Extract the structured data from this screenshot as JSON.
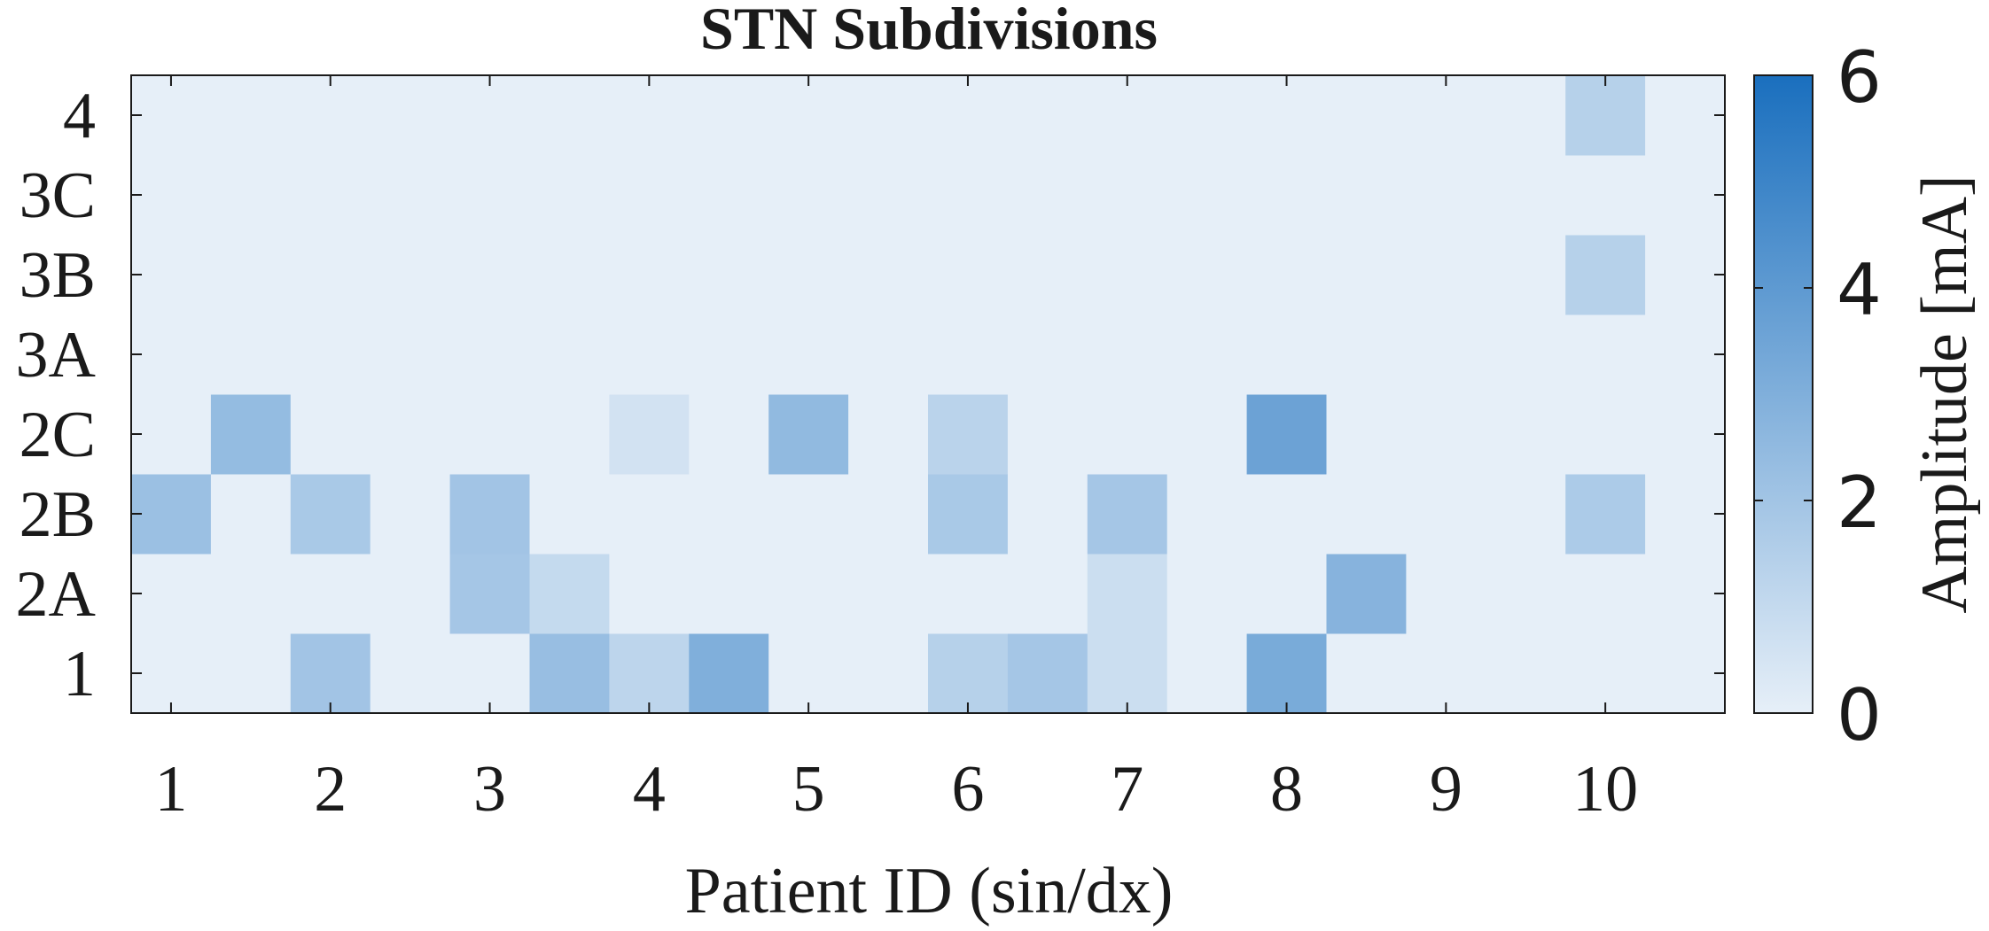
{
  "chart_data": {
    "type": "heatmap",
    "title": "STN Subdivisions",
    "xlabel": "Patient ID (sin/dx)",
    "colorbar_label": "Amplitude [mA]",
    "x_categories": [
      "1",
      "",
      "2",
      "",
      "3",
      "",
      "4",
      "",
      "5",
      "",
      "6",
      "",
      "7",
      "",
      "8",
      "",
      "9",
      "",
      "10",
      ""
    ],
    "x_tick_labels": [
      "1",
      "2",
      "3",
      "4",
      "5",
      "6",
      "7",
      "8",
      "9",
      "10"
    ],
    "y_categories": [
      "1",
      "2A",
      "2B",
      "2C",
      "3A",
      "3B",
      "3C",
      "4"
    ],
    "clim": [
      0,
      6
    ],
    "colorbar_ticks": [
      "0",
      "2",
      "4",
      "6"
    ],
    "colors": {
      "low": "#e6eff8",
      "high": "#1a6fbe",
      "axis": "#1a1a1a"
    },
    "values": [
      [
        0,
        0,
        2.0,
        0,
        0,
        2.3,
        1.2,
        3.0,
        0,
        0,
        1.4,
        1.9,
        0.8,
        0,
        3.2,
        0,
        0,
        0,
        0,
        0
      ],
      [
        0,
        0,
        0,
        0,
        1.9,
        1.0,
        0,
        0,
        0,
        0,
        0,
        0,
        0.8,
        0,
        0,
        2.8,
        0,
        0,
        0,
        0
      ],
      [
        2.2,
        0,
        1.8,
        0,
        2.0,
        0,
        0,
        0,
        0,
        0,
        1.8,
        0,
        1.9,
        0,
        0,
        0,
        0,
        0,
        1.7,
        0
      ],
      [
        0,
        2.4,
        0,
        0,
        0,
        0,
        0.6,
        0,
        2.5,
        0,
        1.3,
        0,
        0,
        0,
        3.6,
        0,
        0,
        0,
        0,
        0
      ],
      [
        0,
        0,
        0,
        0,
        0,
        0,
        0,
        0,
        0,
        0,
        0,
        0,
        0,
        0,
        0,
        0,
        0,
        0,
        0,
        0
      ],
      [
        0,
        0,
        0,
        0,
        0,
        0,
        0,
        0,
        0,
        0,
        0,
        0,
        0,
        0,
        0,
        0,
        0,
        0,
        1.4,
        0
      ],
      [
        0,
        0,
        0,
        0,
        0,
        0,
        0,
        0,
        0,
        0,
        0,
        0,
        0,
        0,
        0,
        0,
        0,
        0,
        0,
        0
      ],
      [
        0,
        0,
        0,
        0,
        0,
        0,
        0,
        0,
        0,
        0,
        0,
        0,
        0,
        0,
        0,
        0,
        0,
        0,
        1.4,
        0
      ]
    ]
  }
}
